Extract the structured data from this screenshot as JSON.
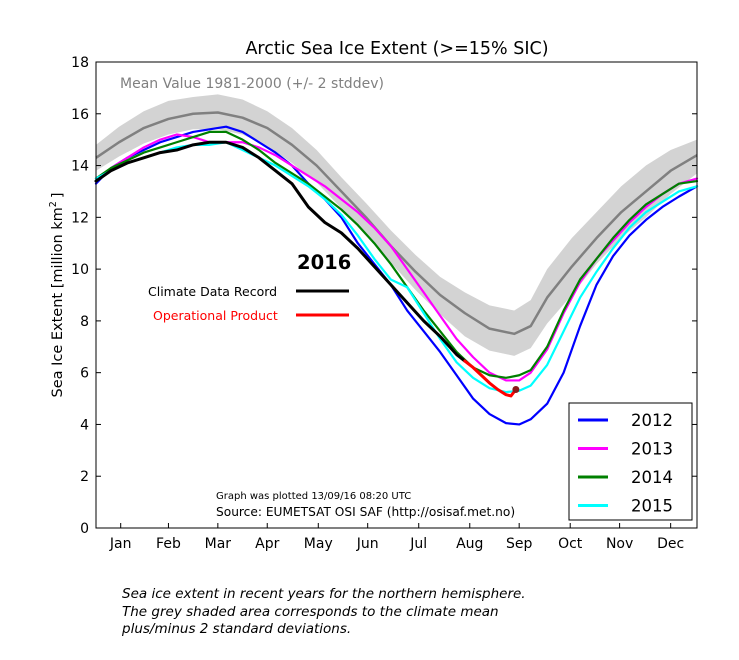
{
  "chart_data": {
    "type": "line",
    "title": "Arctic Sea Ice Extent (>=15% SIC)",
    "ylabel": "Sea Ice Extent [million km",
    "ylabel_sup": "2",
    "ylabel_end": "]",
    "ylim": [
      0,
      18
    ],
    "yticks": [
      0,
      2,
      4,
      6,
      8,
      10,
      12,
      14,
      16,
      18
    ],
    "xlim": [
      1,
      366
    ],
    "months": [
      "Jan",
      "Feb",
      "Mar",
      "Apr",
      "May",
      "Jun",
      "Jul",
      "Aug",
      "Sep",
      "Oct",
      "Nov",
      "Dec"
    ],
    "month_centers": [
      16,
      45,
      75,
      105,
      136,
      166,
      197,
      228,
      258,
      289,
      319,
      350
    ],
    "grid": false,
    "legend_position": "bottom-right",
    "mean_band": {
      "label": "Mean Value 1981-2000 (+/- 2 stddev)",
      "color": "#808080",
      "band_color": "#d3d3d3",
      "x": [
        1,
        15,
        30,
        45,
        60,
        75,
        90,
        105,
        120,
        135,
        150,
        165,
        180,
        195,
        210,
        225,
        240,
        255,
        265,
        275,
        290,
        305,
        320,
        335,
        350,
        366
      ],
      "mean": [
        14.3,
        14.9,
        15.45,
        15.8,
        16.0,
        16.05,
        15.85,
        15.45,
        14.8,
        14.0,
        13.0,
        12.0,
        10.9,
        9.9,
        9.0,
        8.3,
        7.7,
        7.5,
        7.8,
        8.9,
        10.1,
        11.2,
        12.2,
        13.0,
        13.8,
        14.4
      ],
      "upper": [
        14.8,
        15.5,
        16.1,
        16.5,
        16.65,
        16.75,
        16.55,
        16.1,
        15.45,
        14.6,
        13.55,
        12.55,
        11.5,
        10.55,
        9.7,
        9.1,
        8.6,
        8.4,
        8.8,
        10.0,
        11.2,
        12.2,
        13.2,
        14.0,
        14.6,
        15.0
      ],
      "lower": [
        13.8,
        14.35,
        14.85,
        15.2,
        15.4,
        15.4,
        15.2,
        14.75,
        14.1,
        13.35,
        12.35,
        11.35,
        10.25,
        9.2,
        8.25,
        7.4,
        6.85,
        6.65,
        6.95,
        7.9,
        9.0,
        10.2,
        11.2,
        12.0,
        12.9,
        13.7
      ]
    },
    "series": [
      {
        "name": "2012",
        "color": "#0000ff",
        "x": [
          1,
          10,
          20,
          30,
          40,
          50,
          60,
          70,
          80,
          90,
          100,
          110,
          120,
          130,
          140,
          150,
          160,
          170,
          180,
          190,
          200,
          210,
          220,
          230,
          240,
          250,
          258,
          265,
          275,
          285,
          295,
          305,
          315,
          325,
          335,
          345,
          355,
          366
        ],
        "values": [
          13.3,
          13.9,
          14.3,
          14.6,
          14.9,
          15.1,
          15.3,
          15.4,
          15.5,
          15.3,
          14.9,
          14.5,
          14.0,
          13.3,
          12.7,
          12.0,
          11.0,
          10.2,
          9.4,
          8.4,
          7.6,
          6.8,
          5.9,
          5.0,
          4.4,
          4.05,
          4.0,
          4.2,
          4.8,
          6.0,
          7.8,
          9.4,
          10.5,
          11.3,
          11.9,
          12.4,
          12.8,
          13.2
        ]
      },
      {
        "name": "2013",
        "color": "#ff00ff",
        "x": [
          1,
          10,
          20,
          30,
          40,
          50,
          60,
          70,
          80,
          90,
          100,
          110,
          120,
          130,
          140,
          150,
          160,
          170,
          180,
          190,
          200,
          210,
          220,
          230,
          240,
          250,
          258,
          265,
          275,
          285,
          295,
          305,
          315,
          325,
          335,
          345,
          355,
          366
        ],
        "values": [
          13.4,
          13.9,
          14.3,
          14.7,
          15.0,
          15.2,
          15.1,
          14.9,
          14.9,
          14.9,
          14.7,
          14.4,
          14.0,
          13.6,
          13.2,
          12.7,
          12.2,
          11.6,
          10.9,
          10.0,
          9.1,
          8.2,
          7.3,
          6.6,
          6.0,
          5.7,
          5.7,
          6.0,
          6.9,
          8.3,
          9.5,
          10.4,
          11.1,
          11.8,
          12.4,
          12.9,
          13.3,
          13.5
        ]
      },
      {
        "name": "2014",
        "color": "#008000",
        "x": [
          1,
          10,
          20,
          30,
          40,
          50,
          60,
          70,
          80,
          90,
          100,
          110,
          120,
          130,
          140,
          150,
          160,
          170,
          180,
          190,
          200,
          210,
          220,
          230,
          240,
          250,
          258,
          265,
          275,
          285,
          295,
          305,
          315,
          325,
          335,
          345,
          355,
          366
        ],
        "values": [
          13.5,
          13.9,
          14.2,
          14.5,
          14.7,
          14.9,
          15.1,
          15.3,
          15.3,
          15.0,
          14.6,
          14.1,
          13.7,
          13.3,
          12.8,
          12.3,
          11.7,
          11.0,
          10.2,
          9.3,
          8.4,
          7.6,
          6.8,
          6.2,
          5.9,
          5.8,
          5.9,
          6.1,
          7.0,
          8.4,
          9.6,
          10.4,
          11.2,
          11.9,
          12.5,
          12.9,
          13.3,
          13.4
        ]
      },
      {
        "name": "2015",
        "color": "#00ffff",
        "x": [
          1,
          10,
          20,
          30,
          40,
          50,
          60,
          70,
          80,
          90,
          100,
          110,
          120,
          130,
          140,
          150,
          160,
          170,
          180,
          190,
          200,
          210,
          220,
          230,
          240,
          250,
          258,
          265,
          275,
          285,
          295,
          305,
          315,
          325,
          335,
          345,
          355,
          366
        ],
        "values": [
          13.5,
          13.8,
          14.1,
          14.3,
          14.5,
          14.7,
          14.8,
          14.8,
          14.9,
          14.6,
          14.3,
          14.0,
          13.6,
          13.2,
          12.7,
          12.1,
          11.3,
          10.4,
          9.6,
          9.3,
          8.3,
          7.3,
          6.4,
          5.8,
          5.4,
          5.25,
          5.3,
          5.5,
          6.3,
          7.6,
          8.9,
          9.9,
          10.8,
          11.6,
          12.2,
          12.6,
          13.0,
          13.2
        ]
      },
      {
        "name": "Climate Data Record",
        "color": "#000000",
        "x": [
          1,
          10,
          20,
          30,
          40,
          50,
          60,
          70,
          80,
          90,
          100,
          110,
          120,
          130,
          140,
          150,
          160,
          170,
          180,
          190,
          200,
          210,
          220,
          225
        ],
        "values": [
          13.4,
          13.8,
          14.1,
          14.3,
          14.5,
          14.6,
          14.8,
          14.9,
          14.9,
          14.7,
          14.3,
          13.8,
          13.3,
          12.4,
          11.8,
          11.4,
          10.8,
          10.1,
          9.4,
          8.7,
          8.0,
          7.4,
          6.7,
          6.45
        ]
      },
      {
        "name": "Operational Product",
        "color": "#ff0000",
        "x": [
          225,
          230,
          235,
          240,
          245,
          250,
          253,
          256
        ],
        "values": [
          6.45,
          6.2,
          5.9,
          5.6,
          5.35,
          5.15,
          5.1,
          5.35
        ]
      }
    ],
    "endpoint_marker": {
      "x": 256,
      "y": 5.35,
      "color": "#8b1a1a"
    },
    "inset_legend": {
      "year": "2016",
      "cdr_label": "Climate Data Record",
      "op_label": "Operational Product",
      "cdr_color": "#000000",
      "op_color": "#ff0000"
    },
    "legend_entries": [
      "2012",
      "2013",
      "2014",
      "2015"
    ],
    "annotations": {
      "plotted": "Graph was plotted 13/09/16 08:20 UTC",
      "source": "Source: EUMETSAT OSI SAF (http://osisaf.met.no)"
    }
  },
  "caption": {
    "line1": "Sea ice extent in recent years for the northern hemisphere.",
    "line2": "The grey shaded area corresponds to the climate mean",
    "line3": "plus/minus 2 standard deviations."
  }
}
